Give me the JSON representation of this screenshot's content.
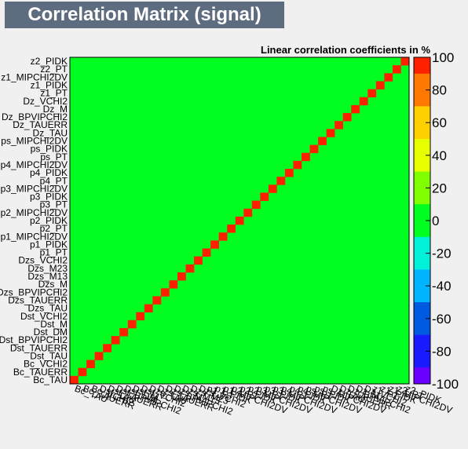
{
  "title": "Correlation Matrix (signal)",
  "subtitle": "Linear correlation coefficients in %",
  "chart_data": {
    "type": "heatmap",
    "title": "Correlation Matrix (signal)",
    "subtitle": "Linear correlation coefficients in %",
    "variables": [
      "Bc_TAU",
      "Bc_TAUERR",
      "Bc_VCHI2",
      "Dst_TAU",
      "Dst_TAUERR",
      "Dst_BPVIPCHI2",
      "Dst_DM",
      "Dst_M",
      "Dst_VCHI2",
      "Dzs_TAU",
      "Dzs_TAUERR",
      "Dzs_BPVIPCHI2",
      "Dzs_M",
      "Dzs_M13",
      "Dzs_M23",
      "Dzs_VCHI2",
      "p1_PT",
      "p1_PIDK",
      "p1_MIPCHI2DV",
      "p2_PT",
      "p2_PIDK",
      "p2_MIPCHI2DV",
      "p3_PT",
      "p3_PIDK",
      "p3_MIPCHI2DV",
      "p4_PT",
      "p4_PIDK",
      "p4_MIPCHI2DV",
      "ps_PT",
      "ps_PIDK",
      "ps_MIPCHI2DV",
      "Dz_TAU",
      "Dz_TAUERR",
      "Dz_BPVIPCHI2",
      "Dz_M",
      "Dz_VCHI2",
      "z1_PT",
      "z1_PIDK",
      "z1_MIPCHI2DV",
      "z2_PT",
      "z2_PIDK"
    ],
    "diagonal_value": 100,
    "dominant_value": 0,
    "colorbar": {
      "min": -100,
      "max": 100,
      "ticks": [
        100,
        80,
        60,
        40,
        20,
        0,
        -20,
        -40,
        -60,
        -80,
        -100
      ]
    },
    "colors": {
      "neg100": "#6a00ff",
      "neg80": "#1a1aff",
      "neg60": "#005ae0",
      "neg40": "#00b4ff",
      "neg20": "#00f0d8",
      "zero": "#00ff20",
      "pos20": "#7fff00",
      "pos40": "#e8ff00",
      "pos60": "#ffd000",
      "pos80": "#ff7800",
      "pos100": "#ff2000"
    }
  }
}
